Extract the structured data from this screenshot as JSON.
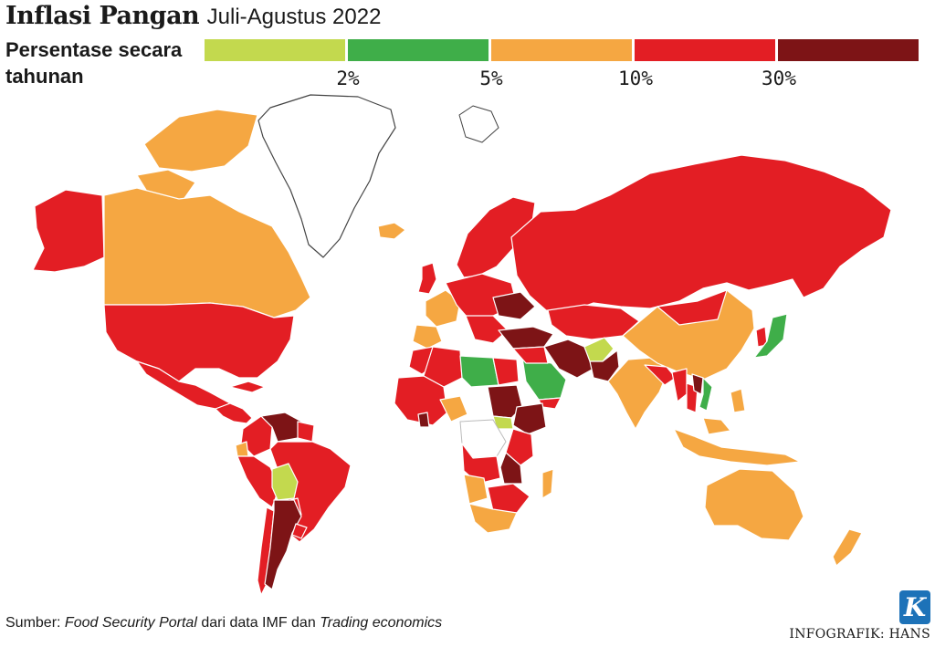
{
  "header": {
    "title": "Inflasi Pangan",
    "subtitle": "Juli-Agustus 2022"
  },
  "legend": {
    "label": "Persentase secara tahunan",
    "colors": [
      "#c3d94e",
      "#3fae49",
      "#f5a742",
      "#e31e24",
      "#7d1416"
    ],
    "ticks": [
      "2%",
      "5%",
      "10%",
      "30%"
    ],
    "no_data_color": "#ffffff"
  },
  "footer": {
    "source_prefix": "Sumber:",
    "source_name_1": "Food Security Portal",
    "source_mid": "dari data IMF dan",
    "source_name_2": "Trading economics",
    "credit": "INFOGRAFIK: HANS",
    "logo_letter": "K"
  }
}
